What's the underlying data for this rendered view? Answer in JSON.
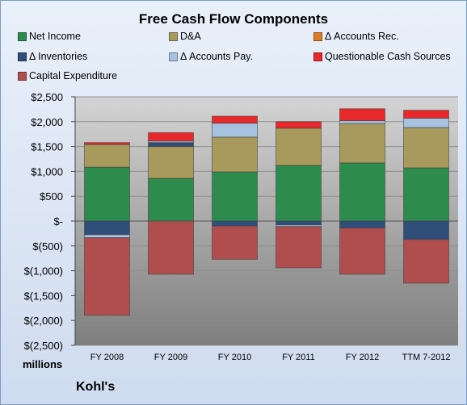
{
  "chart_data": {
    "type": "bar",
    "stacked": true,
    "title": "Free Cash Flow Components",
    "units_label": "millions",
    "company": "Kohl's",
    "categories": [
      "FY 2008",
      "FY 2009",
      "FY 2010",
      "FY 2011",
      "FY 2012",
      "TTM 7-2012"
    ],
    "ylim": [
      -2500,
      2500
    ],
    "yticks": [
      -2500,
      -2000,
      -1500,
      -1000,
      -500,
      0,
      500,
      1000,
      1500,
      2000,
      2500
    ],
    "ytick_labels": [
      "$(2,500)",
      "$(2,000)",
      "$(1,500)",
      "$(1,000)",
      "$(500)",
      "$-",
      "$500",
      "$1,000",
      "$1,500",
      "$2,000",
      "$2,500"
    ],
    "grid": true,
    "legend_position": "top",
    "series": [
      {
        "name": "Net Income",
        "color": "#2e8b4e",
        "values": [
          1085,
          860,
          990,
          1120,
          1170,
          1070
        ]
      },
      {
        "name": "D&A",
        "color": "#a89a5c",
        "values": [
          455,
          640,
          700,
          750,
          790,
          810
        ]
      },
      {
        "name": "Δ Accounts Rec.",
        "color": "#e07a20",
        "values": [
          0,
          0,
          0,
          0,
          0,
          0
        ]
      },
      {
        "name": "Δ Inventories",
        "color": "#2f4f7a",
        "values": [
          -275,
          80,
          -100,
          -80,
          -140,
          -370
        ]
      },
      {
        "name": "Δ Accounts Pay.",
        "color": "#a7c1e0",
        "values": [
          -60,
          30,
          280,
          -30,
          60,
          190
        ]
      },
      {
        "name": "Questionable Cash Sources",
        "color": "#e8282a",
        "values": [
          40,
          170,
          140,
          130,
          240,
          160
        ]
      },
      {
        "name": "Capital Expenditure",
        "color": "#b04e4f",
        "values": [
          -1560,
          -1070,
          -670,
          -830,
          -930,
          -880
        ]
      }
    ]
  }
}
